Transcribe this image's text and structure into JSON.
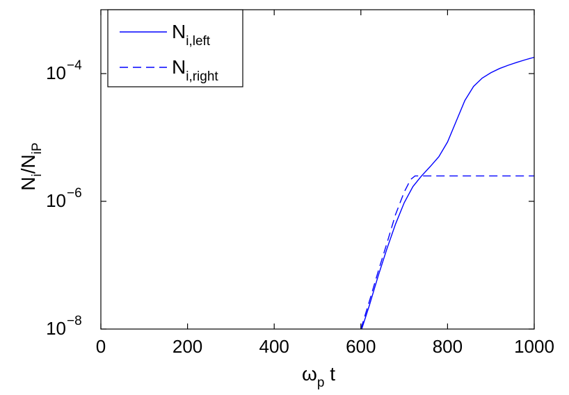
{
  "chart_data": {
    "type": "line",
    "title": "",
    "xlabel": {
      "main": "ω",
      "sub": "p",
      "rest": " t"
    },
    "ylabel": {
      "main1": "N",
      "sub1": "i",
      "mid": "/N",
      "sub2": "iP"
    },
    "xlim": [
      0,
      1000
    ],
    "ylim": [
      1e-08,
      0.001
    ],
    "yscale": "log",
    "grid": false,
    "legend_position": "top-left",
    "x_ticks": [
      {
        "value": 0,
        "label": "0"
      },
      {
        "value": 200,
        "label": "200"
      },
      {
        "value": 400,
        "label": "400"
      },
      {
        "value": 600,
        "label": "600"
      },
      {
        "value": 800,
        "label": "800"
      },
      {
        "value": 1000,
        "label": "1000"
      }
    ],
    "y_ticks": [
      {
        "value": 1e-08,
        "base": "10",
        "exp": "−8"
      },
      {
        "value": 1e-06,
        "base": "10",
        "exp": "−6"
      },
      {
        "value": 0.0001,
        "base": "10",
        "exp": "−4"
      }
    ],
    "series": [
      {
        "name": {
          "main": "N",
          "sub": "i,left"
        },
        "style": "solid",
        "color": "#0000ff",
        "x": [
          602,
          620,
          640,
          660,
          680,
          700,
          720,
          740,
          760,
          780,
          800,
          820,
          840,
          860,
          880,
          900,
          920,
          940,
          960,
          980,
          1000
        ],
        "y": [
          1e-08,
          2.4e-08,
          6.8e-08,
          1.8e-07,
          4.4e-07,
          9.5e-07,
          1.7e-06,
          2.5e-06,
          3.5e-06,
          5e-06,
          8.5e-06,
          1.8e-05,
          3.8e-05,
          6.3e-05,
          8.5e-05,
          0.000103,
          0.00012,
          0.000135,
          0.00015,
          0.000165,
          0.00018
        ]
      },
      {
        "name": {
          "main": "N",
          "sub": "i,right"
        },
        "style": "dashed",
        "color": "#0000ff",
        "x": [
          600,
          620,
          640,
          660,
          680,
          700,
          715,
          725,
          740,
          800,
          900,
          1000
        ],
        "y": [
          1e-08,
          2.8e-08,
          8e-08,
          2.2e-07,
          6.2e-07,
          1.4e-06,
          2.2e-06,
          2.5e-06,
          2.5e-06,
          2.5e-06,
          2.5e-06,
          2.5e-06
        ]
      }
    ]
  }
}
